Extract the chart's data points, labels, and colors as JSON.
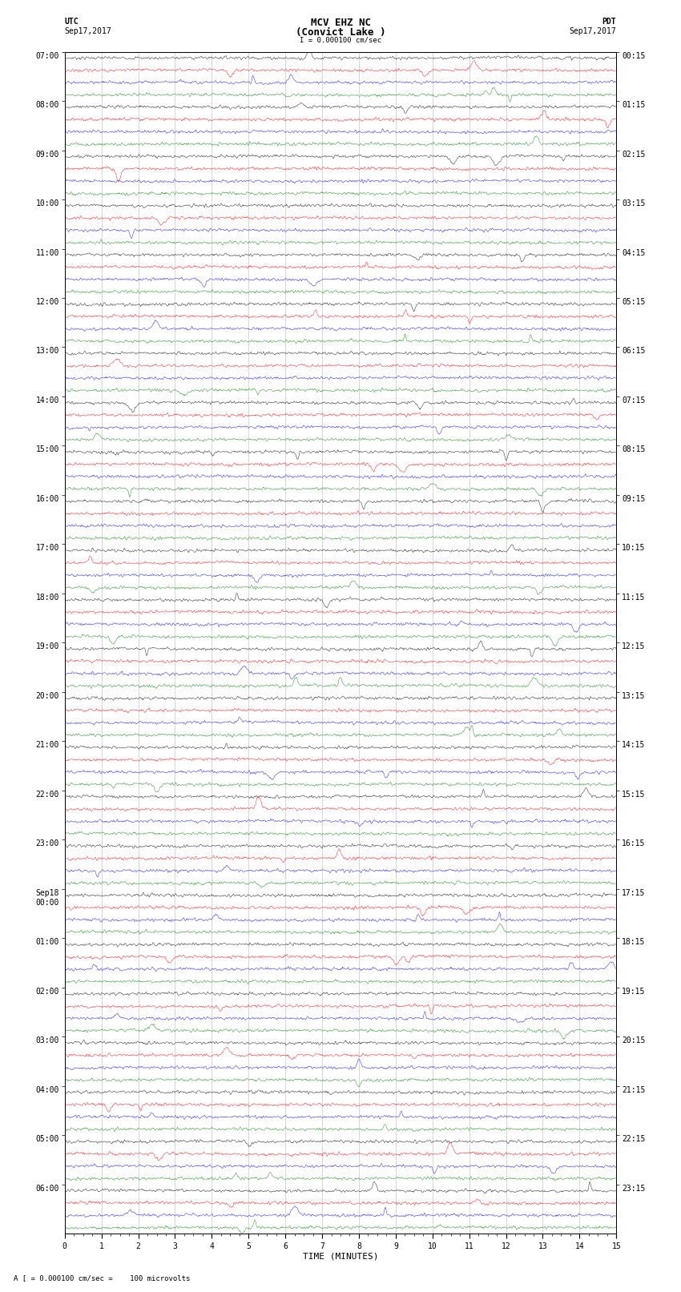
{
  "title_line1": "MCV EHZ NC",
  "title_line2": "(Convict Lake )",
  "scale_text": "I = 0.000100 cm/sec",
  "left_header_line1": "UTC",
  "left_header_line2": "Sep17,2017",
  "right_header_line1": "PDT",
  "right_header_line2": "Sep17,2017",
  "footer": "A [ = 0.000100 cm/sec =    100 microvolts",
  "xlabel": "TIME (MINUTES)",
  "utc_labels": [
    "07:00",
    "08:00",
    "09:00",
    "10:00",
    "11:00",
    "12:00",
    "13:00",
    "14:00",
    "15:00",
    "16:00",
    "17:00",
    "18:00",
    "19:00",
    "20:00",
    "21:00",
    "22:00",
    "23:00",
    "Sep18\n00:00",
    "01:00",
    "02:00",
    "03:00",
    "04:00",
    "05:00",
    "06:00"
  ],
  "pdt_labels": [
    "00:15",
    "01:15",
    "02:15",
    "03:15",
    "04:15",
    "05:15",
    "06:15",
    "07:15",
    "08:15",
    "09:15",
    "10:15",
    "11:15",
    "12:15",
    "13:15",
    "14:15",
    "15:15",
    "16:15",
    "17:15",
    "18:15",
    "19:15",
    "20:15",
    "21:15",
    "22:15",
    "23:15"
  ],
  "trace_colors": [
    "black",
    "red",
    "blue",
    "green"
  ],
  "n_groups": 24,
  "n_minutes": 15,
  "noise_scale": 0.25,
  "spike_scale": 0.8,
  "bg_color": "white",
  "grid_color": "#888888",
  "tick_label_size": 7,
  "title_fontsize": 9,
  "header_fontsize": 7,
  "lw": 0.3,
  "samples_per_minute": 80
}
